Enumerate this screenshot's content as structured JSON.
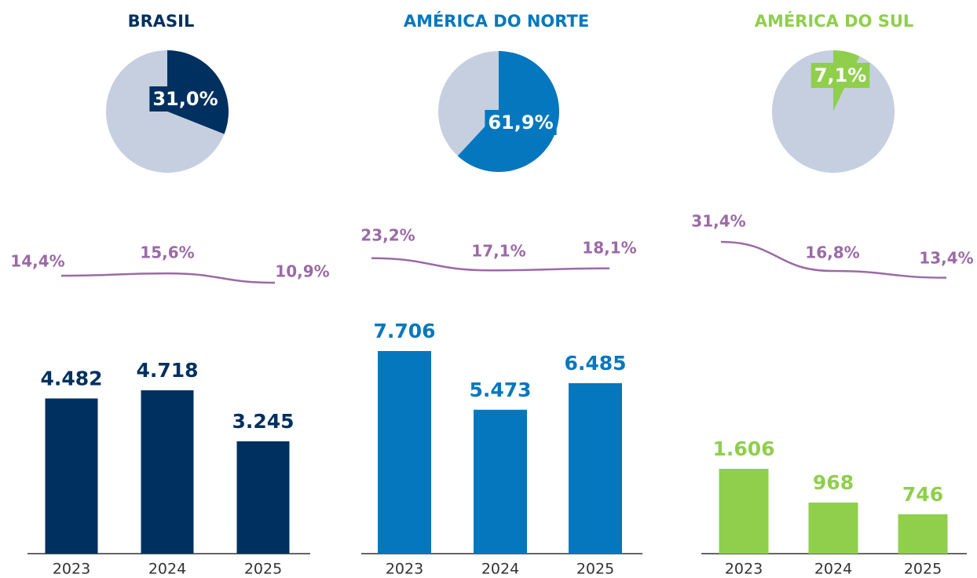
{
  "chart_data": [
    {
      "type": "pie",
      "title": "BRASIL",
      "values": [
        31.0,
        69.0
      ],
      "value_labels": [
        "31,0%",
        null
      ],
      "colors": [
        "#00305f",
        "#c5cfe0"
      ]
    },
    {
      "type": "line",
      "values": [
        14.4,
        15.6,
        10.9
      ],
      "value_labels": [
        "14,4%",
        "15,6%",
        "10,9%"
      ],
      "color": "#9b6aa6"
    },
    {
      "type": "bar",
      "categories": [
        "2023",
        "2024",
        "2025"
      ],
      "values": [
        4482,
        4718,
        3245
      ],
      "value_labels": [
        "4.482",
        "4.718",
        "3.245"
      ],
      "color": "#00305f"
    },
    {
      "type": "pie",
      "title": "AMÉRICA DO NORTE",
      "values": [
        61.9,
        38.1
      ],
      "value_labels": [
        "61,9%",
        null
      ],
      "colors": [
        "#0577be",
        "#c5cfe0"
      ]
    },
    {
      "type": "line",
      "values": [
        23.2,
        17.1,
        18.1
      ],
      "value_labels": [
        "23,2%",
        "17,1%",
        "18,1%"
      ],
      "color": "#9b6aa6"
    },
    {
      "type": "bar",
      "categories": [
        "2023",
        "2024",
        "2025"
      ],
      "values": [
        7706,
        5473,
        6485
      ],
      "value_labels": [
        "7.706",
        "5.473",
        "6.485"
      ],
      "color": "#0577be"
    },
    {
      "type": "pie",
      "title": "AMÉRICA DO SUL",
      "values": [
        7.1,
        92.9
      ],
      "value_labels": [
        "7,1%",
        null
      ],
      "colors": [
        "#8fcf4b",
        "#c5cfe0"
      ]
    },
    {
      "type": "line",
      "values": [
        31.4,
        16.8,
        13.4
      ],
      "value_labels": [
        "31,4%",
        "16,8%",
        "13,4%"
      ],
      "color": "#9b6aa6"
    },
    {
      "type": "bar",
      "categories": [
        "2023",
        "2024",
        "2025"
      ],
      "values": [
        1606,
        968,
        746
      ],
      "value_labels": [
        "1.606",
        "968",
        "746"
      ],
      "color": "#8fcf4b"
    }
  ]
}
